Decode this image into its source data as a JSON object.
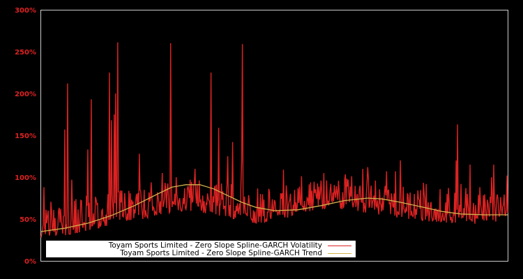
{
  "chart_data": {
    "type": "line",
    "title": "",
    "xlabel": "",
    "ylabel": "",
    "ylim": [
      0,
      300
    ],
    "yticks": [
      "0%",
      "50%",
      "100%",
      "150%",
      "200%",
      "250%",
      "300%"
    ],
    "grid": false,
    "legend_position": "lower center",
    "background": "#000000",
    "frame_color": "#cccccc",
    "tick_color": "#dd2222",
    "series": [
      {
        "name": "Toyam Sports Limited - Zero Slope Spline-GARCH Volatility",
        "color": "#dd2222",
        "x_range": [
          0,
          1
        ],
        "baseline_points": [
          [
            0,
            25
          ],
          [
            0.02,
            30
          ],
          [
            0.05,
            28
          ],
          [
            0.08,
            32
          ],
          [
            0.1,
            35
          ],
          [
            0.13,
            40
          ],
          [
            0.16,
            45
          ],
          [
            0.19,
            48
          ],
          [
            0.22,
            50
          ],
          [
            0.25,
            55
          ],
          [
            0.28,
            58
          ],
          [
            0.31,
            60
          ],
          [
            0.34,
            58
          ],
          [
            0.37,
            55
          ],
          [
            0.4,
            52
          ],
          [
            0.43,
            48
          ],
          [
            0.46,
            45
          ],
          [
            0.49,
            47
          ],
          [
            0.52,
            50
          ],
          [
            0.55,
            55
          ],
          [
            0.58,
            60
          ],
          [
            0.61,
            62
          ],
          [
            0.64,
            62
          ],
          [
            0.67,
            60
          ],
          [
            0.7,
            57
          ],
          [
            0.73,
            55
          ],
          [
            0.76,
            52
          ],
          [
            0.79,
            50
          ],
          [
            0.82,
            48
          ],
          [
            0.85,
            46
          ],
          [
            0.88,
            45
          ],
          [
            0.91,
            44
          ],
          [
            0.94,
            44
          ],
          [
            0.97,
            45
          ],
          [
            1,
            46
          ]
        ],
        "spikes": [
          [
            0.006,
            88
          ],
          [
            0.05,
            157
          ],
          [
            0.056,
            212
          ],
          [
            0.066,
            97
          ],
          [
            0.1,
            133
          ],
          [
            0.107,
            193
          ],
          [
            0.13,
            60
          ],
          [
            0.146,
            225
          ],
          [
            0.15,
            168
          ],
          [
            0.157,
            175
          ],
          [
            0.16,
            200
          ],
          [
            0.164,
            261
          ],
          [
            0.21,
            128
          ],
          [
            0.26,
            105
          ],
          [
            0.278,
            260
          ],
          [
            0.29,
            100
          ],
          [
            0.33,
            110
          ],
          [
            0.364,
            225
          ],
          [
            0.38,
            159
          ],
          [
            0.4,
            125
          ],
          [
            0.41,
            142
          ],
          [
            0.43,
            120
          ],
          [
            0.432,
            259
          ],
          [
            0.47,
            80
          ],
          [
            0.52,
            109
          ],
          [
            0.56,
            65
          ],
          [
            0.6,
            96
          ],
          [
            0.615,
            72
          ],
          [
            0.66,
            80
          ],
          [
            0.69,
            110
          ],
          [
            0.7,
            112
          ],
          [
            0.74,
            107
          ],
          [
            0.76,
            107
          ],
          [
            0.77,
            120
          ],
          [
            0.8,
            80
          ],
          [
            0.83,
            70
          ],
          [
            0.87,
            80
          ],
          [
            0.89,
            120
          ],
          [
            0.9,
            92
          ],
          [
            0.893,
            163
          ],
          [
            0.91,
            87
          ],
          [
            0.92,
            115
          ],
          [
            0.94,
            88
          ],
          [
            0.965,
            100
          ],
          [
            0.97,
            115
          ],
          [
            0.99,
            65
          ],
          [
            0.999,
            102
          ]
        ]
      },
      {
        "name": "Toyam Sports Limited - Zero Slope Spline-GARCH Trend",
        "color": "#d4b24c",
        "points": [
          [
            0,
            35
          ],
          [
            0.05,
            39
          ],
          [
            0.1,
            45
          ],
          [
            0.15,
            54
          ],
          [
            0.2,
            66
          ],
          [
            0.25,
            80
          ],
          [
            0.28,
            88
          ],
          [
            0.31,
            91
          ],
          [
            0.34,
            91
          ],
          [
            0.37,
            86
          ],
          [
            0.4,
            78
          ],
          [
            0.43,
            70
          ],
          [
            0.46,
            64
          ],
          [
            0.5,
            60
          ],
          [
            0.55,
            61
          ],
          [
            0.6,
            66
          ],
          [
            0.65,
            72
          ],
          [
            0.7,
            75
          ],
          [
            0.73,
            74
          ],
          [
            0.77,
            70
          ],
          [
            0.82,
            64
          ],
          [
            0.86,
            59
          ],
          [
            0.9,
            56
          ],
          [
            0.95,
            55
          ],
          [
            1,
            55
          ]
        ]
      }
    ]
  },
  "legend": {
    "items": [
      {
        "label": "Toyam Sports Limited - Zero Slope Spline-GARCH Volatility",
        "color": "#dd2222"
      },
      {
        "label": "Toyam Sports Limited - Zero Slope Spline-GARCH Trend",
        "color": "#d4b24c"
      }
    ]
  }
}
